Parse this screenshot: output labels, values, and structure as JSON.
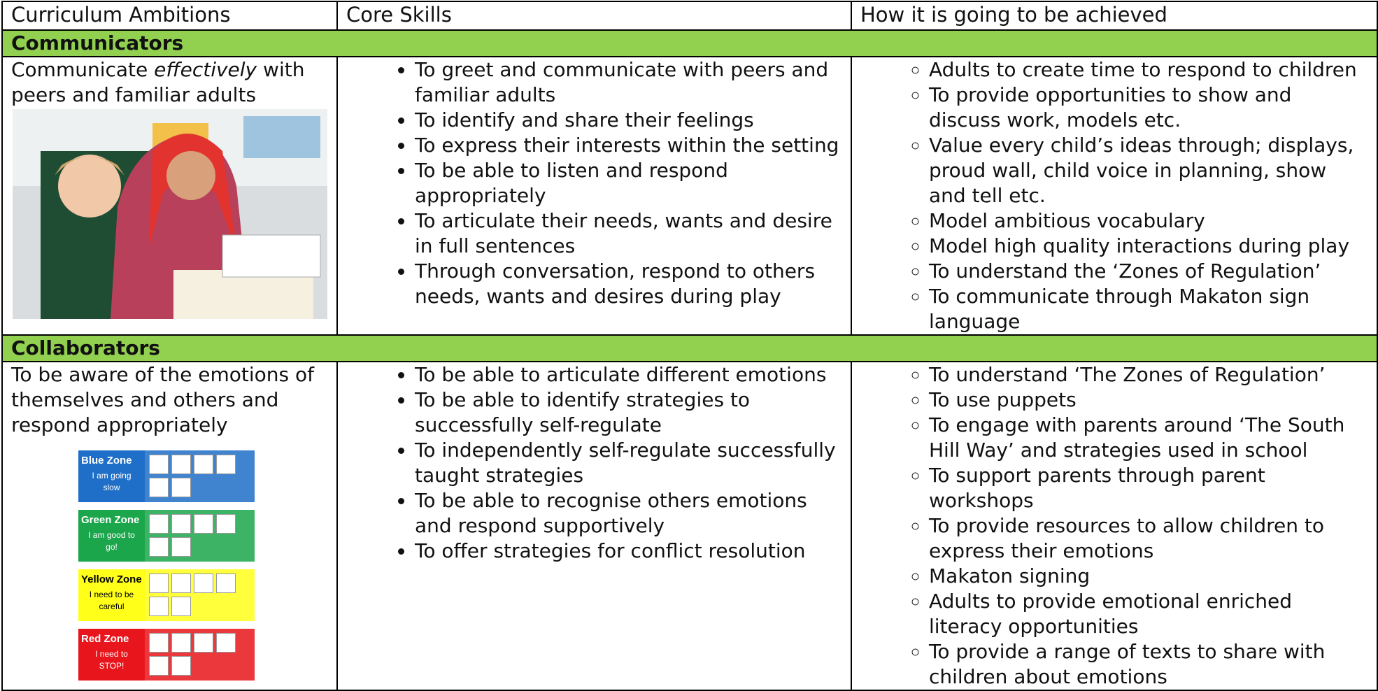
{
  "header": {
    "columns": [
      "Curriculum Ambitions",
      "Core Skills",
      "How it is going to be achieved"
    ]
  },
  "sections": [
    {
      "title": "Communicators",
      "ambition": [
        {
          "text": "Communicate "
        },
        {
          "text": "effectively",
          "italic": true
        },
        {
          "text": " with peers and familiar adults"
        }
      ],
      "skills": [
        "To greet and communicate with peers and familiar adults",
        "To identify and share their feelings",
        "To express their interests within the setting",
        "To be able to listen and respond appropriately",
        "To articulate their needs, wants and desire in full sentences",
        "Through conversation, respond to others needs, wants and desires during play"
      ],
      "achieved": [
        "Adults to create time to respond to children",
        "To provide opportunities to show and discuss work, models etc.",
        "Value every child’s ideas through; displays, proud wall, child voice in planning, show and tell etc.",
        "Model ambitious vocabulary",
        "Model high quality interactions during play",
        "To understand the ‘Zones of Regulation’",
        "To communicate through Makaton sign language"
      ]
    },
    {
      "title": "Collaborators",
      "ambition": [
        {
          "text": "To be aware of the emotions of themselves and others and respond appropriately"
        }
      ],
      "zones": [
        {
          "name": "Blue Zone",
          "caption": "I am going slow",
          "color": "#1f6fc8",
          "text_color": "#ffffff"
        },
        {
          "name": "Green Zone",
          "caption": "I am good to go!",
          "color": "#1ca64c",
          "text_color": "#ffffff"
        },
        {
          "name": "Yellow Zone",
          "caption": "I need to be careful",
          "color": "#ffff1a",
          "text_color": "#000000"
        },
        {
          "name": "Red Zone",
          "caption": "I need to STOP!",
          "color": "#e8161c",
          "text_color": "#ffffff"
        }
      ],
      "skills": [
        "To be able to articulate different emotions",
        "To be able to identify strategies to successfully self-regulate",
        "To independently self-regulate successfully taught strategies",
        "To be able to recognise others emotions and respond supportively",
        "To offer strategies for conflict resolution"
      ],
      "achieved": [
        "To understand ‘The Zones of Regulation’",
        "To use puppets",
        "To engage with parents around ‘The South Hill Way’ and strategies used in school",
        "To support parents through parent workshops",
        "To provide resources to allow children to express their emotions",
        "Makaton signing",
        "Adults to provide emotional enriched literacy opportunities",
        "To provide a range of texts to share with children about emotions"
      ]
    }
  ]
}
